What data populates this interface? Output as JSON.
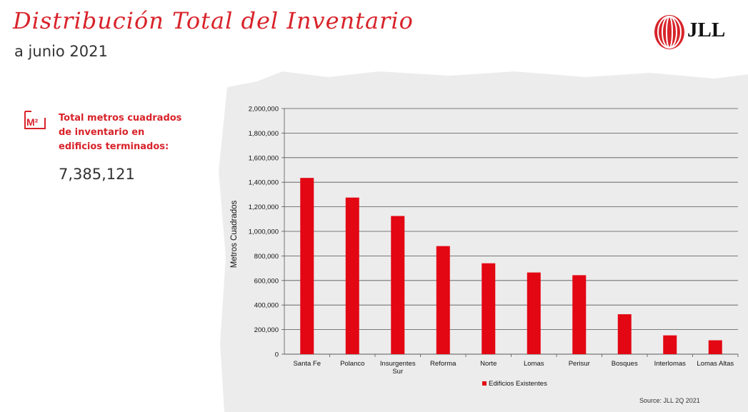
{
  "header": {
    "title": "Distribución Total del Inventario",
    "subtitle": "a junio 2021",
    "logo_text": "JLL"
  },
  "kpi": {
    "icon_text": "M²",
    "label_lines": [
      "Total metros cuadrados",
      "de inventario en",
      "edificios terminados:"
    ],
    "value": "7,385,121"
  },
  "colors": {
    "accent": "#d8232a",
    "bar": "#e30613",
    "chart_background": "#ececec"
  },
  "chart_data": {
    "type": "bar",
    "categories": [
      "Santa Fe",
      "Polanco",
      "Insurgentes Sur",
      "Reforma",
      "Norte",
      "Lomas",
      "Perisur",
      "Bosques",
      "Interlomas",
      "Lomas Altas"
    ],
    "category_labels": [
      [
        "Santa Fe"
      ],
      [
        "Polanco"
      ],
      [
        "Insurgentes",
        "Sur"
      ],
      [
        "Reforma"
      ],
      [
        "Norte"
      ],
      [
        "Lomas"
      ],
      [
        "Perisur"
      ],
      [
        "Bosques"
      ],
      [
        "Interlomas"
      ],
      [
        "Lomas Altas"
      ]
    ],
    "series": [
      {
        "name": "Edificios Existentes",
        "values": [
          1435000,
          1275000,
          1125000,
          880000,
          740000,
          665000,
          643000,
          325000,
          153000,
          113000
        ]
      }
    ],
    "ylabel": "Metros Cuadrados",
    "xlabel": "",
    "ylim": [
      0,
      2000000
    ],
    "yticks": [
      0,
      200000,
      400000,
      600000,
      800000,
      1000000,
      1200000,
      1400000,
      1600000,
      1800000,
      2000000
    ],
    "ytick_labels": [
      "0",
      "200,000",
      "400,000",
      "600,000",
      "800,000",
      "1,000,000",
      "1,200,000",
      "1,400,000",
      "1,600,000",
      "1,800,000",
      "2,000,000"
    ],
    "grid": true,
    "legend_position": "bottom",
    "source": "Source: JLL 2Q 2021"
  }
}
